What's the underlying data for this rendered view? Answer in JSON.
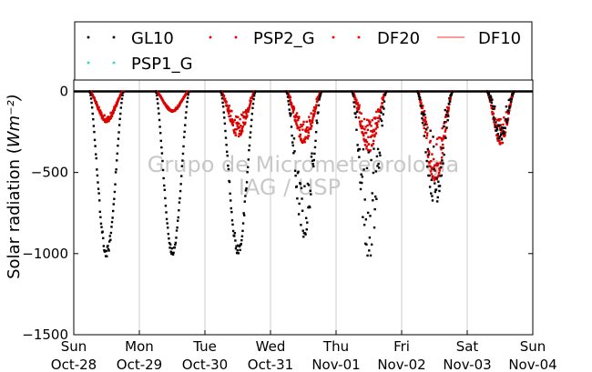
{
  "chart_data": {
    "type": "scatter",
    "ylabel": "Solar radiation (Wm⁻²)",
    "ylim": [
      -1500,
      70
    ],
    "xlim": [
      0,
      7
    ],
    "grid": "vertical lines at day boundaries",
    "y_ticks": [
      "−1500",
      "−1000",
      "−500",
      "0"
    ],
    "y_tick_values": [
      -1500,
      -1000,
      -500,
      0
    ],
    "x_ticks": [
      {
        "day": "Sun",
        "date": "Oct-28"
      },
      {
        "day": "Mon",
        "date": "Oct-29"
      },
      {
        "day": "Tue",
        "date": "Oct-30"
      },
      {
        "day": "Wed",
        "date": "Oct-31"
      },
      {
        "day": "Thu",
        "date": "Nov-01"
      },
      {
        "day": "Fri",
        "date": "Nov-02"
      },
      {
        "day": "Sat",
        "date": "Nov-03"
      },
      {
        "day": "Sun",
        "date": "Nov-04"
      }
    ],
    "legend_position": "top",
    "watermark": [
      "Grupo de Micrometeorologia",
      "IAG / USP"
    ],
    "series": [
      {
        "name": "GL10",
        "color": "#000000",
        "marker": "dots",
        "days": [
          {
            "start": 0.24,
            "end": 0.76,
            "min": -1020,
            "noise": 0.04
          },
          {
            "start": 1.25,
            "end": 1.76,
            "min": -1010,
            "noise": 0.03
          },
          {
            "start": 2.24,
            "end": 2.77,
            "min": -1005,
            "noise": 0.05
          },
          {
            "start": 3.24,
            "end": 3.78,
            "min": -900,
            "noise": 0.25
          },
          {
            "start": 4.24,
            "end": 4.77,
            "min": -1030,
            "noise": 0.45
          },
          {
            "start": 5.24,
            "end": 5.78,
            "min": -700,
            "noise": 0.45
          },
          {
            "start": 6.3,
            "end": 6.72,
            "min": -300,
            "noise": 0.4
          }
        ]
      },
      {
        "name": "PSP2_G",
        "color": "#dd0000",
        "marker": "dots",
        "days": [
          {
            "start": 0.24,
            "end": 0.76,
            "min": -190,
            "noise": 0.15
          },
          {
            "start": 1.25,
            "end": 1.76,
            "min": -125,
            "noise": 0.08
          },
          {
            "start": 2.24,
            "end": 2.77,
            "min": -280,
            "noise": 0.3
          },
          {
            "start": 3.24,
            "end": 3.78,
            "min": -320,
            "noise": 0.3
          },
          {
            "start": 4.24,
            "end": 4.77,
            "min": -370,
            "noise": 0.35
          },
          {
            "start": 5.24,
            "end": 5.78,
            "min": -560,
            "noise": 0.35
          },
          {
            "start": 6.3,
            "end": 6.72,
            "min": -330,
            "noise": 0.35
          }
        ]
      },
      {
        "name": "DF20",
        "color": "#ff0000",
        "marker": "dots",
        "days": []
      },
      {
        "name": "DF10",
        "color": "#ff3333",
        "marker": "line",
        "days": []
      },
      {
        "name": "PSP1_G",
        "color": "#2fd6c2",
        "marker": "dots",
        "days": []
      }
    ]
  }
}
